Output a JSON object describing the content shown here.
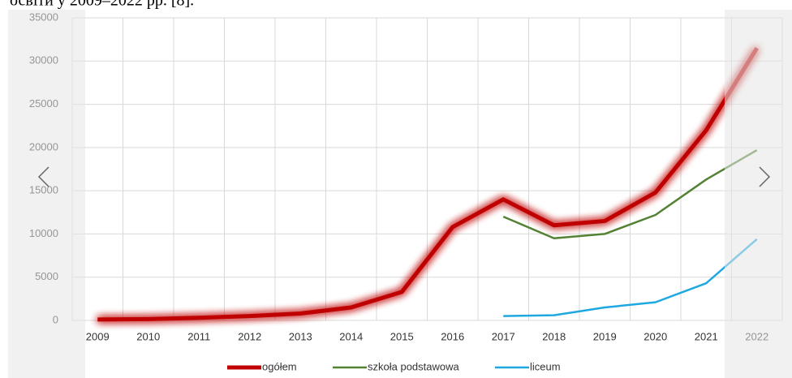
{
  "chart_data": {
    "type": "line",
    "caption": "освіти у 2009–2022 рр. [8].",
    "categories": [
      "2009",
      "2010",
      "2011",
      "2012",
      "2013",
      "2014",
      "2015",
      "2016",
      "2017",
      "2018",
      "2019",
      "2020",
      "2021",
      "2022"
    ],
    "series": [
      {
        "name": "ogółem",
        "color": "#c00000",
        "values": [
          100,
          150,
          300,
          500,
          800,
          1500,
          3300,
          10800,
          14000,
          11000,
          11500,
          14800,
          22000,
          31500
        ]
      },
      {
        "name": "szkoła podstawowa",
        "color": "#548235",
        "values": [
          null,
          null,
          null,
          null,
          null,
          null,
          null,
          null,
          12000,
          9500,
          10000,
          12200,
          16300,
          19700
        ]
      },
      {
        "name": "liceum",
        "color": "#1fa8e0",
        "values": [
          null,
          null,
          null,
          null,
          null,
          null,
          null,
          null,
          500,
          600,
          1500,
          2100,
          4300,
          9400
        ]
      }
    ],
    "ylim": [
      0,
      35000
    ],
    "yticks": [
      0,
      5000,
      10000,
      15000,
      20000,
      25000,
      30000,
      35000
    ],
    "grid": true,
    "legend": "bottom"
  }
}
